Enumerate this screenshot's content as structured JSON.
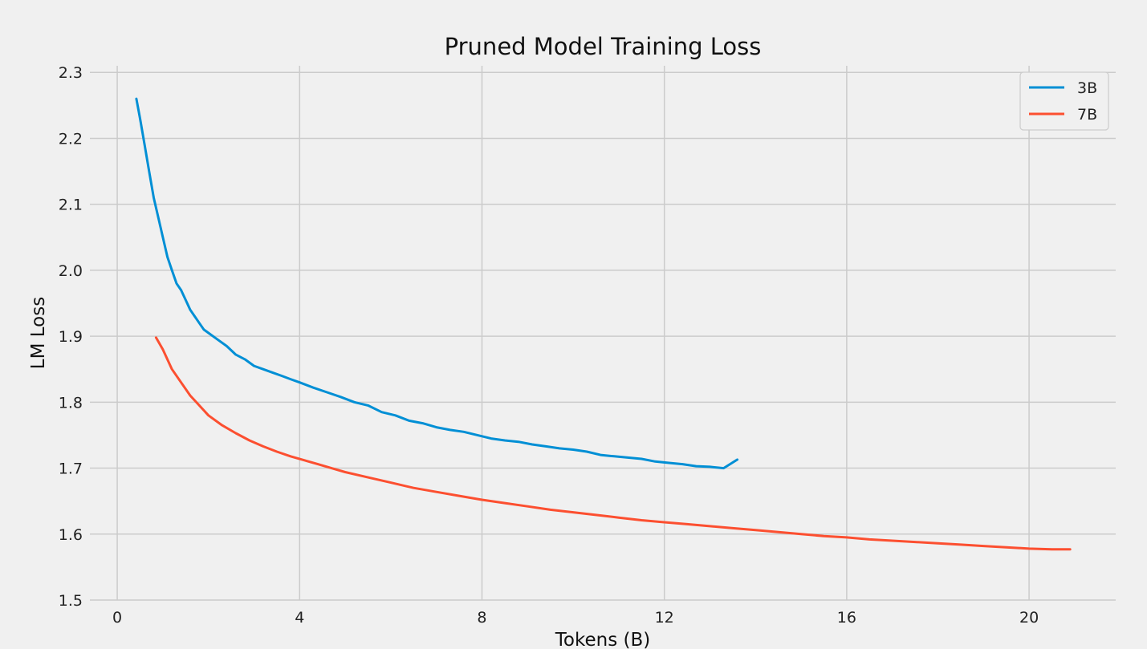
{
  "chart_data": {
    "type": "line",
    "title": "Pruned Model Training Loss",
    "xlabel": "Tokens (B)",
    "ylabel": "LM Loss",
    "xlim": [
      -0.6,
      21.9
    ],
    "ylim": [
      1.5,
      2.31
    ],
    "xticks": [
      0,
      4,
      8,
      12,
      16,
      20
    ],
    "yticks": [
      1.5,
      1.6,
      1.7,
      1.8,
      1.9,
      2.0,
      2.1,
      2.2,
      2.3
    ],
    "grid": true,
    "legend": "top-right",
    "series": [
      {
        "name": "3B",
        "color": "#008fd5",
        "x": [
          0.42,
          0.5,
          0.6,
          0.7,
          0.8,
          0.9,
          1.0,
          1.1,
          1.2,
          1.3,
          1.4,
          1.5,
          1.6,
          1.7,
          1.8,
          1.9,
          2.0,
          2.2,
          2.4,
          2.6,
          2.8,
          3.0,
          3.2,
          3.4,
          3.6,
          3.8,
          4.0,
          4.3,
          4.6,
          4.9,
          5.2,
          5.5,
          5.8,
          6.1,
          6.4,
          6.7,
          7.0,
          7.3,
          7.6,
          7.9,
          8.2,
          8.5,
          8.8,
          9.1,
          9.4,
          9.7,
          10.0,
          10.3,
          10.6,
          10.9,
          11.2,
          11.5,
          11.8,
          12.1,
          12.4,
          12.7,
          13.0,
          13.3,
          13.6
        ],
        "y": [
          2.26,
          2.23,
          2.19,
          2.15,
          2.11,
          2.08,
          2.05,
          2.02,
          2.0,
          1.98,
          1.97,
          1.955,
          1.94,
          1.93,
          1.92,
          1.91,
          1.905,
          1.895,
          1.885,
          1.872,
          1.865,
          1.855,
          1.85,
          1.845,
          1.84,
          1.835,
          1.83,
          1.822,
          1.815,
          1.808,
          1.8,
          1.795,
          1.785,
          1.78,
          1.772,
          1.768,
          1.762,
          1.758,
          1.755,
          1.75,
          1.745,
          1.742,
          1.74,
          1.736,
          1.733,
          1.73,
          1.728,
          1.725,
          1.72,
          1.718,
          1.716,
          1.714,
          1.71,
          1.708,
          1.706,
          1.703,
          1.702,
          1.7,
          1.713
        ]
      },
      {
        "name": "7B",
        "color": "#fc4f30",
        "x": [
          0.85,
          1.0,
          1.2,
          1.4,
          1.6,
          1.8,
          2.0,
          2.3,
          2.6,
          2.9,
          3.2,
          3.5,
          3.8,
          4.1,
          4.4,
          4.7,
          5.0,
          5.5,
          6.0,
          6.5,
          7.0,
          7.5,
          8.0,
          8.5,
          9.0,
          9.5,
          10.0,
          10.5,
          11.0,
          11.5,
          12.0,
          12.5,
          13.0,
          13.5,
          14.0,
          14.5,
          15.0,
          15.5,
          16.0,
          16.5,
          17.0,
          17.5,
          18.0,
          18.5,
          19.0,
          19.5,
          20.0,
          20.5,
          20.9
        ],
        "y": [
          1.898,
          1.88,
          1.85,
          1.83,
          1.81,
          1.795,
          1.78,
          1.765,
          1.753,
          1.742,
          1.733,
          1.725,
          1.718,
          1.712,
          1.706,
          1.7,
          1.694,
          1.686,
          1.678,
          1.67,
          1.664,
          1.658,
          1.652,
          1.647,
          1.642,
          1.637,
          1.633,
          1.629,
          1.625,
          1.621,
          1.618,
          1.615,
          1.612,
          1.609,
          1.606,
          1.603,
          1.6,
          1.597,
          1.595,
          1.592,
          1.59,
          1.588,
          1.586,
          1.584,
          1.582,
          1.58,
          1.578,
          1.577,
          1.577
        ]
      }
    ]
  }
}
